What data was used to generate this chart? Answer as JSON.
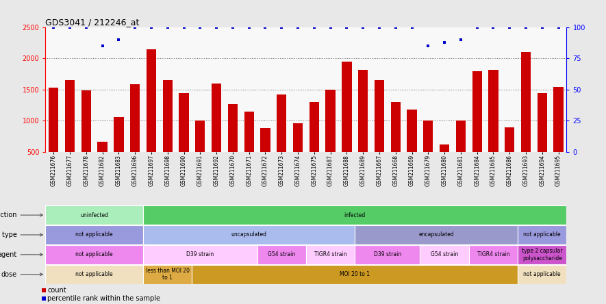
{
  "title": "GDS3041 / 212246_at",
  "samples": [
    "GSM211676",
    "GSM211677",
    "GSM211678",
    "GSM211682",
    "GSM211683",
    "GSM211696",
    "GSM211697",
    "GSM211698",
    "GSM211690",
    "GSM211691",
    "GSM211692",
    "GSM211670",
    "GSM211671",
    "GSM211672",
    "GSM211673",
    "GSM211674",
    "GSM211675",
    "GSM211687",
    "GSM211688",
    "GSM211689",
    "GSM211667",
    "GSM211668",
    "GSM211669",
    "GSM211679",
    "GSM211680",
    "GSM211681",
    "GSM211684",
    "GSM211685",
    "GSM211686",
    "GSM211693",
    "GSM211694",
    "GSM211695"
  ],
  "bar_values": [
    1530,
    1650,
    1490,
    670,
    1060,
    1590,
    2150,
    1650,
    1440,
    1000,
    1600,
    1270,
    1150,
    880,
    1420,
    960,
    1300,
    1500,
    1950,
    1820,
    1650,
    1300,
    1180,
    1010,
    625,
    1000,
    1800,
    1820,
    900,
    2100,
    1440,
    1540
  ],
  "percentile_values": [
    100,
    100,
    100,
    85,
    90,
    100,
    100,
    100,
    100,
    100,
    100,
    100,
    100,
    100,
    100,
    100,
    100,
    100,
    100,
    100,
    100,
    100,
    100,
    85,
    88,
    90,
    100,
    100,
    100,
    100,
    100,
    100
  ],
  "bar_color": "#cc0000",
  "dot_color": "#0000cc",
  "ylim_left": [
    500,
    2500
  ],
  "ylim_right": [
    0,
    100
  ],
  "yticks_left": [
    500,
    1000,
    1500,
    2000,
    2500
  ],
  "yticks_right": [
    0,
    25,
    50,
    75,
    100
  ],
  "grid_values": [
    1000,
    1500,
    2000
  ],
  "background_color": "#e8e8e8",
  "bar_area_bg": "#f8f8f8",
  "infection_row": {
    "label": "infection",
    "segments": [
      {
        "text": "uninfected",
        "start": 0,
        "end": 6,
        "color": "#aaeebb"
      },
      {
        "text": "infected",
        "start": 6,
        "end": 32,
        "color": "#55cc66"
      }
    ]
  },
  "celltype_row": {
    "label": "cell type",
    "segments": [
      {
        "text": "not applicable",
        "start": 0,
        "end": 6,
        "color": "#9999dd"
      },
      {
        "text": "uncapsulated",
        "start": 6,
        "end": 19,
        "color": "#aabbee"
      },
      {
        "text": "encapsulated",
        "start": 19,
        "end": 29,
        "color": "#9999cc"
      },
      {
        "text": "not applicable",
        "start": 29,
        "end": 32,
        "color": "#9999dd"
      }
    ]
  },
  "agent_row": {
    "label": "agent",
    "segments": [
      {
        "text": "not applicable",
        "start": 0,
        "end": 6,
        "color": "#ee88ee"
      },
      {
        "text": "D39 strain",
        "start": 6,
        "end": 13,
        "color": "#ffccff"
      },
      {
        "text": "G54 strain",
        "start": 13,
        "end": 16,
        "color": "#ee88ee"
      },
      {
        "text": "TIGR4 strain",
        "start": 16,
        "end": 19,
        "color": "#ffccff"
      },
      {
        "text": "D39 strain",
        "start": 19,
        "end": 23,
        "color": "#ee88ee"
      },
      {
        "text": "G54 strain",
        "start": 23,
        "end": 26,
        "color": "#ffccff"
      },
      {
        "text": "TIGR4 strain",
        "start": 26,
        "end": 29,
        "color": "#ee88ee"
      },
      {
        "text": "type 2 capsular\npolysaccharide",
        "start": 29,
        "end": 32,
        "color": "#cc55cc"
      }
    ]
  },
  "dose_row": {
    "label": "dose",
    "segments": [
      {
        "text": "not applicable",
        "start": 0,
        "end": 6,
        "color": "#f0e0c0"
      },
      {
        "text": "less than MOI 20\nto 1",
        "start": 6,
        "end": 9,
        "color": "#ddaa44"
      },
      {
        "text": "MOI 20 to 1",
        "start": 9,
        "end": 29,
        "color": "#cc9922"
      },
      {
        "text": "not applicable",
        "start": 29,
        "end": 32,
        "color": "#f0e0c0"
      }
    ]
  },
  "legend_count_color": "#cc0000",
  "legend_dot_color": "#0000cc"
}
